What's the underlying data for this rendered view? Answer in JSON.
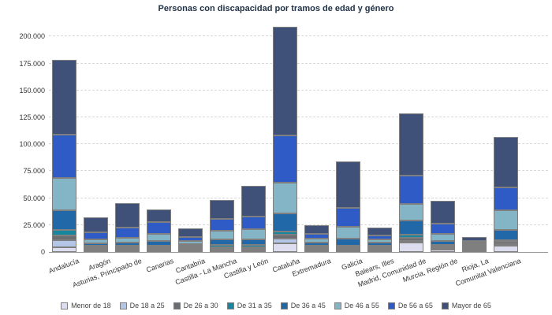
{
  "title": "Personas con discapacidad por tramos de edad y género",
  "chart_data": {
    "type": "bar",
    "stacked": true,
    "title": "Personas con discapacidad por tramos de edad y género",
    "xlabel": "",
    "ylabel": "",
    "ylim": [
      0,
      210000
    ],
    "y_tick_interval": 25000,
    "y_ticks": [
      "0",
      "25.000",
      "50.000",
      "75.000",
      "100.000",
      "125.000",
      "150.000",
      "175.000",
      "200.000"
    ],
    "grid": "horizontal-dashed",
    "legend_position": "bottom",
    "categories": [
      "Andalucía",
      "Aragón",
      "Asturias, Principado de",
      "Canarias",
      "Cantabria",
      "Castilla - La Mancha",
      "Castilla y León",
      "Cataluña",
      "Extremadura",
      "Galicia",
      "Balears, Illes",
      "Madrid, Comunidad de",
      "Murcia, Región de",
      "Rioja, La",
      "Comunitat Valenciana"
    ],
    "series": [
      {
        "name": "Menor de 18",
        "color": "#dcdeef",
        "values": [
          4400,
          600,
          500,
          1200,
          700,
          1500,
          800,
          8000,
          800,
          1200,
          800,
          8800,
          1900,
          400,
          5600
        ]
      },
      {
        "name": "De 18 a 25",
        "color": "#b4c6e7",
        "values": [
          6600,
          800,
          400,
          1200,
          600,
          1100,
          900,
          4800,
          800,
          1200,
          800,
          1700,
          1500,
          300,
          1700
        ]
      },
      {
        "name": "De 26 a 30",
        "color": "#6a6e73",
        "values": [
          4400,
          600,
          400,
          1300,
          500,
          1500,
          1400,
          3600,
          1100,
          1500,
          800,
          2900,
          1500,
          300,
          1900
        ]
      },
      {
        "name": "De 31 a 35",
        "color": "#1787a0",
        "values": [
          5400,
          800,
          400,
          1500,
          400,
          2000,
          2000,
          2900,
          700,
          1400,
          500,
          2400,
          1200,
          200,
          2000
        ]
      },
      {
        "name": "De 36 a 45",
        "color": "#2068a8",
        "values": [
          17700,
          2400,
          2700,
          4100,
          1700,
          5100,
          5400,
          16500,
          2900,
          6400,
          2700,
          13400,
          3600,
          600,
          9000
        ]
      },
      {
        "name": "De 46 a 55",
        "color": "#83b5c6",
        "values": [
          30500,
          3200,
          4600,
          6900,
          2700,
          7800,
          9200,
          28500,
          3400,
          11000,
          3200,
          15400,
          6800,
          800,
          18300
        ]
      },
      {
        "name": "De 56 a 65",
        "color": "#2e5bc6",
        "values": [
          40200,
          6500,
          9800,
          10600,
          3400,
          11400,
          12200,
          43900,
          4400,
          17500,
          3300,
          26700,
          9300,
          1800,
          21200
        ]
      },
      {
        "name": "Mayor de 65",
        "color": "#3f5179",
        "values": [
          69500,
          14200,
          22600,
          11700,
          8100,
          17300,
          28500,
          101100,
          8600,
          43400,
          7300,
          57200,
          21200,
          3600,
          47000
        ]
      }
    ],
    "colors": {
      "grid": "#d8d8d8",
      "axis_line": "#9a9a9a",
      "segment_border": "#7f7f7f",
      "title_text": "#233347",
      "axis_text": "#333333",
      "legend_text": "#444444",
      "background": "#ffffff"
    }
  }
}
